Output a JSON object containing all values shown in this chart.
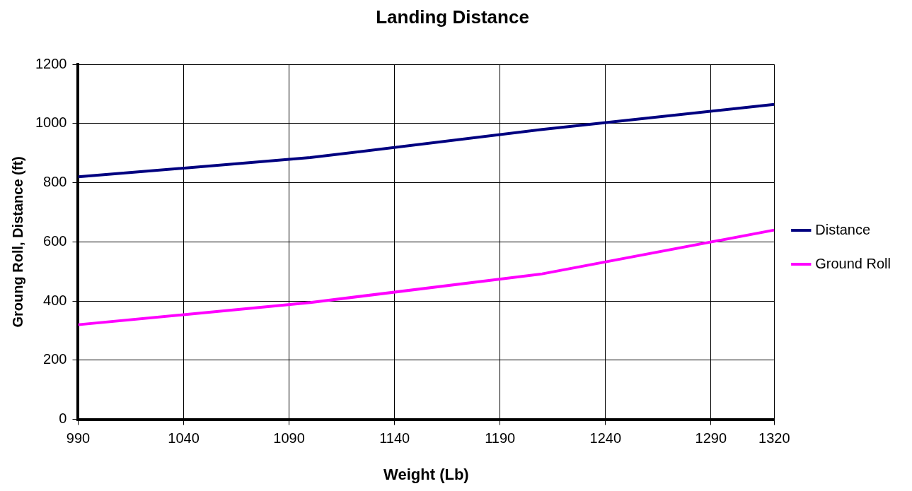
{
  "chart_data": {
    "type": "line",
    "title": "Landing Distance",
    "xlabel": "Weight (Lb)",
    "ylabel": "Groung Roll, Distance (ft)",
    "x": [
      990,
      1100,
      1210,
      1320
    ],
    "series": [
      {
        "name": "Distance",
        "color": "#000080",
        "values": [
          820,
          885,
          980,
          1065
        ]
      },
      {
        "name": "Ground Roll",
        "color": "#ff00ff",
        "values": [
          320,
          395,
          492,
          640
        ]
      }
    ],
    "xlim": [
      990,
      1320
    ],
    "xticks": [
      990,
      1040,
      1090,
      1140,
      1190,
      1240,
      1290,
      1320
    ],
    "ylim": [
      0,
      1200
    ],
    "yticks": [
      0,
      200,
      400,
      600,
      800,
      1000,
      1200
    ],
    "grid": true,
    "legend": "right",
    "marker": "none",
    "line_style": "solid"
  }
}
